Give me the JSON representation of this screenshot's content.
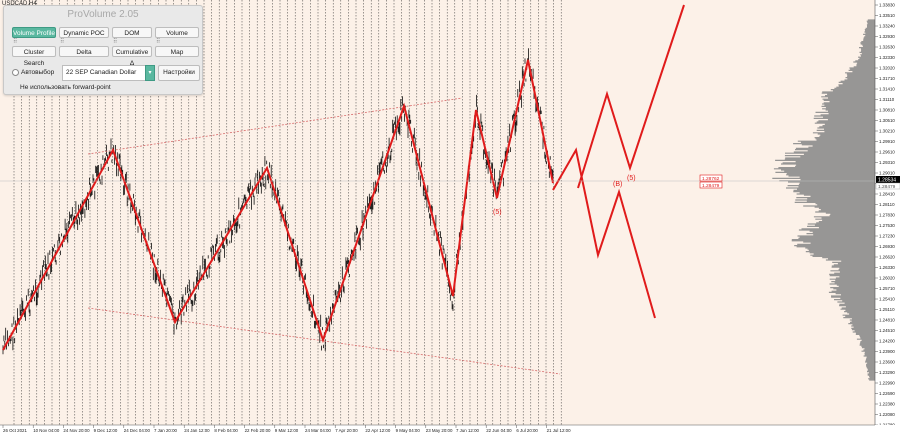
{
  "window": {
    "symbol": "USDCAD,H4"
  },
  "panel": {
    "title": "ProVolume 2.05",
    "buttons": [
      {
        "label": "Volume Profile",
        "active": true
      },
      {
        "label": "Dynamic POC",
        "active": false
      },
      {
        "label": "DOM",
        "active": false
      },
      {
        "label": "Volume",
        "active": false
      },
      {
        "label": "Cluster Search",
        "active": false
      },
      {
        "label": "Delta",
        "active": false
      },
      {
        "label": "Cumulative Δ",
        "active": false
      },
      {
        "label": "Map",
        "active": false
      }
    ],
    "auto_select_label": "Автовыбор",
    "contract_value": "22 SEP Canadian Dollar",
    "settings_button": "Настройки",
    "forward_point_note": "Не использовать forward-point"
  },
  "price_axis": {
    "labels": [
      "1.33830",
      "1.33510",
      "1.33240",
      "1.32930",
      "1.32630",
      "1.32330",
      "1.32020",
      "1.31710",
      "1.31410",
      "1.31110",
      "1.30810",
      "1.30510",
      "1.30210",
      "1.29910",
      "1.29610",
      "1.29310",
      "1.29010",
      "1.28710",
      "1.28410",
      "1.28110",
      "1.27830",
      "1.27530",
      "1.27230",
      "1.26930",
      "1.26620",
      "1.26330",
      "1.26020",
      "1.25710",
      "1.25410",
      "1.25110",
      "1.24810",
      "1.24510",
      "1.24200",
      "1.23900",
      "1.23600",
      "1.23290",
      "1.22990",
      "1.22690",
      "1.22380",
      "1.22080",
      "1.21780"
    ],
    "current_price": "1.28534",
    "current_price_2": "1.28479",
    "price_markers": [
      "1.28762",
      "1.28479"
    ]
  },
  "time_axis": {
    "labels": [
      "26 Oct 2021",
      "10 Nov 04:00",
      "24 Nov 20:00",
      "9 Dec 12:00",
      "24 Dec 04:00",
      "7 Jan 20:00",
      "24 Jan 12:00",
      "8 Feb 04:00",
      "22 Feb 20:00",
      "9 Mar 12:00",
      "24 Mar 04:00",
      "7 Apr 20:00",
      "22 Apr 12:00",
      "9 May 04:00",
      "23 May 20:00",
      "7 Jun 12:00",
      "22 Jun 04:00",
      "6 Jul 20:00",
      "21 Jul 12:00"
    ]
  },
  "wave_labels": [
    "(5)",
    "(B)",
    "(5)"
  ],
  "colors": {
    "background": "#fcf1e8",
    "candles": "#000000",
    "wave_line": "#e01b1b",
    "channel_line": "#d76b6b",
    "volume_profile": "#8c8c8c",
    "panel_accent": "#5ab8a0"
  }
}
